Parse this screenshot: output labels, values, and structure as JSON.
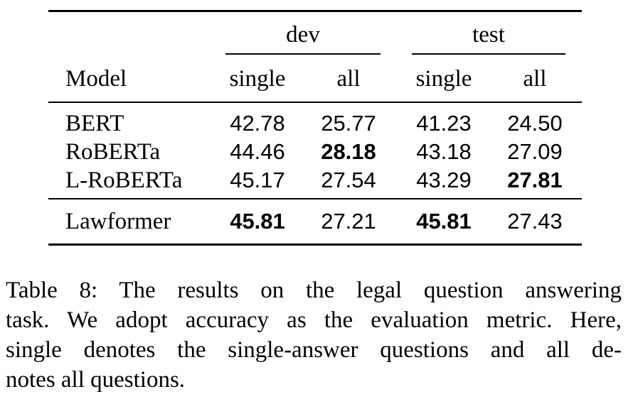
{
  "table": {
    "groups": {
      "dev": "dev",
      "test": "test"
    },
    "headers": {
      "model": "Model",
      "dev_single": "single",
      "dev_all": "all",
      "test_single": "single",
      "test_all": "all"
    },
    "rows": [
      {
        "model": "BERT",
        "dev_single": "42.78",
        "dev_all": "25.77",
        "test_single": "41.23",
        "test_all": "24.50"
      },
      {
        "model": "RoBERTa",
        "dev_single": "44.46",
        "dev_all": "28.18",
        "test_single": "43.18",
        "test_all": "27.09"
      },
      {
        "model": "L-RoBERTa",
        "dev_single": "45.17",
        "dev_all": "27.54",
        "test_single": "43.29",
        "test_all": "27.81"
      },
      {
        "model": "Lawformer",
        "dev_single": "45.81",
        "dev_all": "27.21",
        "test_single": "45.81",
        "test_all": "27.43"
      }
    ],
    "bold_cells": [
      "RoBERTa.dev_all",
      "L-RoBERTa.test_all",
      "Lawformer.dev_single",
      "Lawformer.test_single"
    ]
  },
  "caption": {
    "lines": [
      "Table 8: The results on the legal question answering",
      "task. We adopt accuracy as the evaluation metric. Here,",
      "single denotes the single-answer questions and all de-",
      "notes all questions."
    ]
  }
}
